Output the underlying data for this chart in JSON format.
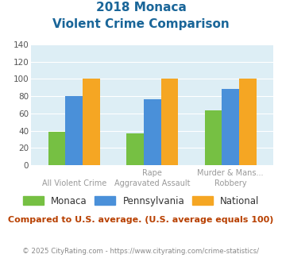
{
  "title_line1": "2018 Monaca",
  "title_line2": "Violent Crime Comparison",
  "cat_labels_top": [
    "",
    "Rape",
    "Murder & Mans..."
  ],
  "cat_labels_bot": [
    "All Violent Crime",
    "Aggravated Assault",
    "Robbery"
  ],
  "groups": [
    {
      "label": "Monaca",
      "color": "#76c043",
      "values": [
        39,
        37,
        64
      ]
    },
    {
      "label": "Pennsylvania",
      "color": "#4a90d9",
      "values": [
        80,
        76,
        88
      ]
    },
    {
      "label": "National",
      "color": "#f5a623",
      "values": [
        100,
        100,
        100
      ]
    }
  ],
  "ylim": [
    0,
    140
  ],
  "yticks": [
    0,
    20,
    40,
    60,
    80,
    100,
    120,
    140
  ],
  "bg_color": "#ddeef5",
  "title_color": "#1a6699",
  "footer_text": "Compared to U.S. average. (U.S. average equals 100)",
  "footer_color": "#b84000",
  "credit_text": "© 2025 CityRating.com - https://www.cityrating.com/crime-statistics/",
  "credit_color": "#888888",
  "grid_color": "#ffffff",
  "bar_width": 0.22,
  "xtick_top_color": "#999999",
  "xtick_bot_color": "#999999"
}
